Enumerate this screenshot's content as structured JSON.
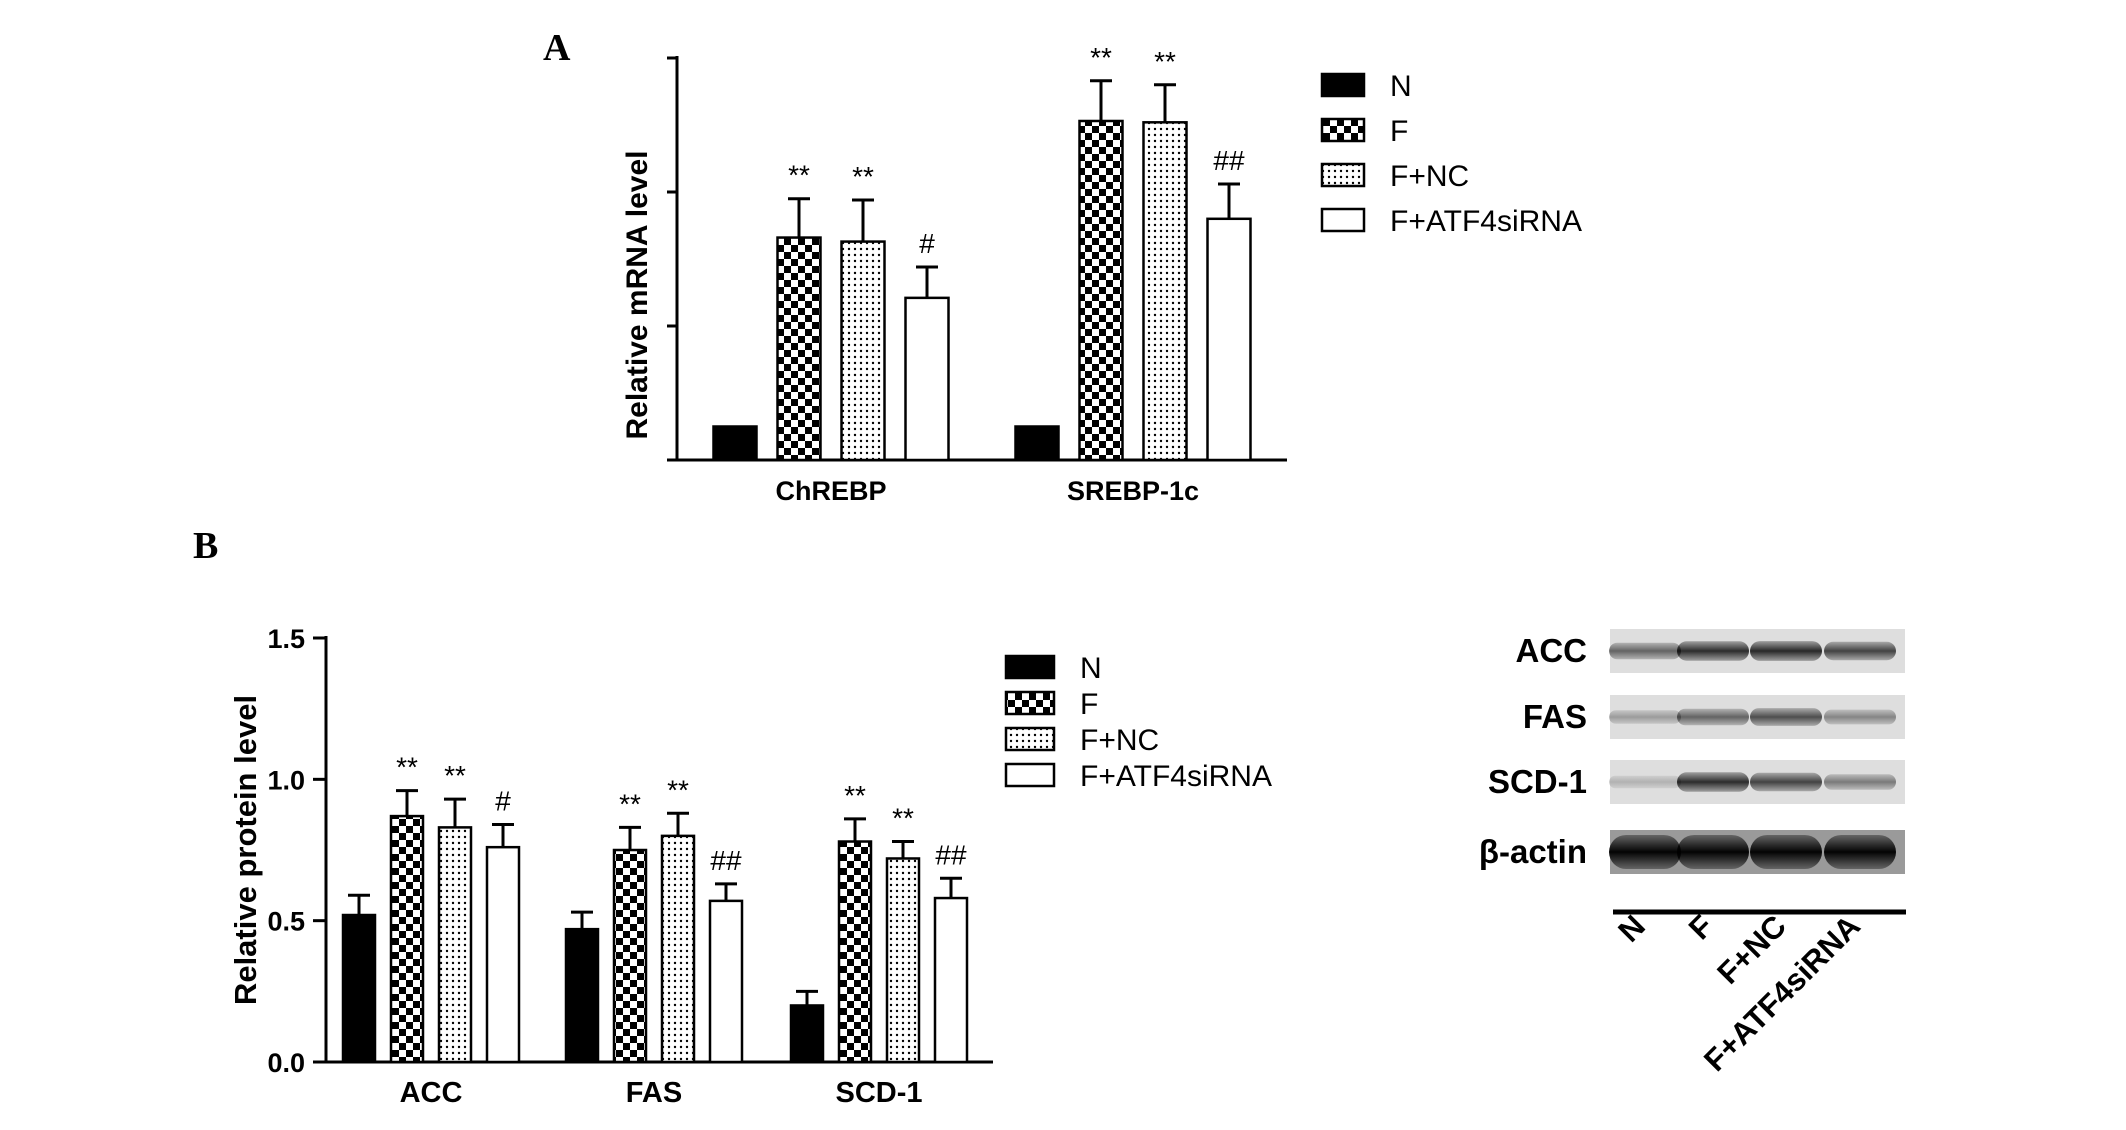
{
  "panels": {
    "a_label": "A",
    "b_label": "B"
  },
  "legend": {
    "items": [
      {
        "label": "N",
        "pattern": "solid"
      },
      {
        "label": "F",
        "pattern": "checker"
      },
      {
        "label": "F+NC",
        "pattern": "dots"
      },
      {
        "label": "F+ATF4siRNA",
        "pattern": "empty"
      }
    ]
  },
  "chart_data": [
    {
      "panel": "A",
      "type": "bar",
      "title": "",
      "xlabel": "",
      "ylabel": "Relative mRNA level",
      "y_tick_labels_shown": false,
      "ylim": [
        0,
        3
      ],
      "categories": [
        "ChREBP",
        "SREBP-1c"
      ],
      "series": [
        {
          "name": "N",
          "values": [
            0.25,
            0.25
          ],
          "errors": [
            0,
            0
          ],
          "annotations": [
            "",
            ""
          ]
        },
        {
          "name": "F",
          "values": [
            1.66,
            2.53
          ],
          "errors": [
            0.29,
            0.3
          ],
          "annotations": [
            "**",
            "**"
          ]
        },
        {
          "name": "F+NC",
          "values": [
            1.63,
            2.52
          ],
          "errors": [
            0.31,
            0.28
          ],
          "annotations": [
            "**",
            "**"
          ]
        },
        {
          "name": "F+ATF4siRNA",
          "values": [
            1.21,
            1.8
          ],
          "errors": [
            0.23,
            0.26
          ],
          "annotations": [
            "#",
            "##"
          ]
        }
      ],
      "legend_position": "right"
    },
    {
      "panel": "B",
      "type": "bar",
      "title": "",
      "xlabel": "",
      "ylabel": "Relative protein level",
      "ylim": [
        0,
        1.5
      ],
      "yticks": [
        "0.0",
        "0.5",
        "1.0",
        "1.5"
      ],
      "categories": [
        "ACC",
        "FAS",
        "SCD-1"
      ],
      "series": [
        {
          "name": "N",
          "values": [
            0.52,
            0.47,
            0.2
          ],
          "errors": [
            0.07,
            0.06,
            0.05
          ],
          "annotations": [
            "",
            "",
            ""
          ]
        },
        {
          "name": "F",
          "values": [
            0.87,
            0.75,
            0.78
          ],
          "errors": [
            0.09,
            0.08,
            0.08
          ],
          "annotations": [
            "**",
            "**",
            "**"
          ]
        },
        {
          "name": "F+NC",
          "values": [
            0.83,
            0.8,
            0.72
          ],
          "errors": [
            0.1,
            0.08,
            0.06
          ],
          "annotations": [
            "**",
            "**",
            "**"
          ]
        },
        {
          "name": "F+ATF4siRNA",
          "values": [
            0.76,
            0.57,
            0.58
          ],
          "errors": [
            0.08,
            0.06,
            0.07
          ],
          "annotations": [
            "#",
            "##",
            "##"
          ]
        }
      ],
      "legend_position": "right"
    }
  ],
  "western_blot": {
    "rows": [
      {
        "label": "ACC",
        "intensities": [
          0.55,
          0.8,
          0.82,
          0.7
        ]
      },
      {
        "label": "FAS",
        "intensities": [
          0.3,
          0.55,
          0.65,
          0.4
        ]
      },
      {
        "label": "SCD-1",
        "intensities": [
          0.2,
          0.8,
          0.7,
          0.45
        ]
      },
      {
        "label": "β-actin",
        "intensities": [
          0.98,
          0.98,
          0.98,
          0.98
        ]
      }
    ],
    "lanes": [
      "N",
      "F",
      "F+NC",
      "F+ATF4siRNA"
    ]
  }
}
